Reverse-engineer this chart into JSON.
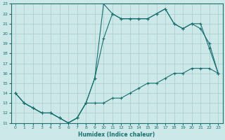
{
  "xlabel": "Humidex (Indice chaleur)",
  "ylabel": "",
  "bg_color": "#cde8e8",
  "line_color": "#1a7070",
  "grid_color": "#a8cccc",
  "xlim": [
    -0.5,
    23.5
  ],
  "ylim": [
    11,
    23
  ],
  "xticks": [
    0,
    1,
    2,
    3,
    4,
    5,
    6,
    7,
    8,
    9,
    10,
    11,
    12,
    13,
    14,
    15,
    16,
    17,
    18,
    19,
    20,
    21,
    22,
    23
  ],
  "yticks": [
    11,
    12,
    13,
    14,
    15,
    16,
    17,
    18,
    19,
    20,
    21,
    22,
    23
  ],
  "line1_x": [
    0,
    1,
    2,
    3,
    4,
    5,
    6,
    7,
    8,
    9,
    10,
    11,
    12,
    13,
    14,
    15,
    16,
    17,
    18,
    19,
    20,
    21,
    22,
    23
  ],
  "line1_y": [
    14,
    13,
    12.5,
    12,
    12,
    11.5,
    11,
    11.5,
    13,
    15.5,
    23,
    22,
    21.5,
    21.5,
    21.5,
    21.5,
    22,
    22.5,
    21,
    20.5,
    21,
    20.5,
    19,
    16
  ],
  "line2_x": [
    0,
    1,
    2,
    3,
    4,
    5,
    6,
    7,
    8,
    9,
    10,
    11,
    12,
    13,
    14,
    15,
    16,
    17,
    18,
    19,
    20,
    21,
    22,
    23
  ],
  "line2_y": [
    14,
    13,
    12.5,
    12,
    12,
    11.5,
    11,
    11.5,
    13,
    15.5,
    19.5,
    22,
    21.5,
    21.5,
    21.5,
    21.5,
    22,
    22.5,
    21,
    20.5,
    21,
    21,
    18.5,
    16
  ],
  "line3_x": [
    0,
    1,
    2,
    3,
    4,
    5,
    6,
    7,
    8,
    9,
    10,
    11,
    12,
    13,
    14,
    15,
    16,
    17,
    18,
    19,
    20,
    21,
    22,
    23
  ],
  "line3_y": [
    14,
    13,
    12.5,
    12,
    12,
    11.5,
    11,
    11.5,
    13,
    13,
    13,
    13.5,
    13.5,
    14,
    14.5,
    15,
    15,
    15.5,
    16,
    16,
    16.5,
    16.5,
    16.5,
    16
  ]
}
